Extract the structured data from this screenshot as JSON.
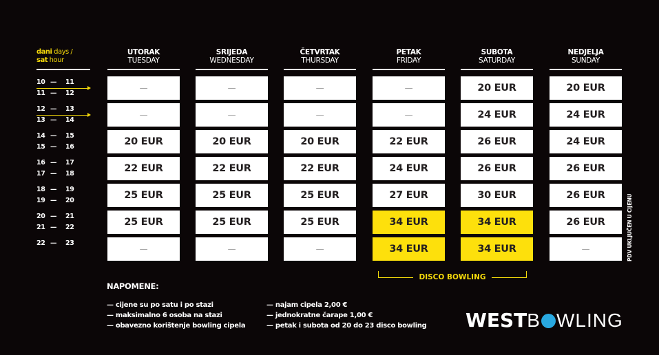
{
  "legend": {
    "days_local": "dani",
    "days_en": "days /",
    "hour_local": "sat",
    "hour_en": "hour"
  },
  "days": [
    {
      "local": "UTORAK",
      "en": "TUESDAY"
    },
    {
      "local": "SRIJEDA",
      "en": "WEDNESDAY"
    },
    {
      "local": "ČETVRTAK",
      "en": "THURSDAY"
    },
    {
      "local": "PETAK",
      "en": "FRIDAY"
    },
    {
      "local": "SUBOTA",
      "en": "SATURDAY"
    },
    {
      "local": "NEDJELJA",
      "en": "SUNDAY"
    }
  ],
  "hours": [
    [
      "10",
      "11"
    ],
    [
      "11",
      "12"
    ],
    [
      "12",
      "13"
    ],
    [
      "13",
      "14"
    ],
    [
      "14",
      "15"
    ],
    [
      "15",
      "16"
    ],
    [
      "16",
      "17"
    ],
    [
      "17",
      "18"
    ],
    [
      "18",
      "19"
    ],
    [
      "19",
      "20"
    ],
    [
      "20",
      "21"
    ],
    [
      "21",
      "22"
    ],
    [
      "22",
      "23"
    ]
  ],
  "dash": "—",
  "prices": [
    [
      "—",
      "—",
      "—",
      "—",
      "20 EUR",
      "20 EUR"
    ],
    [
      "—",
      "—",
      "—",
      "—",
      "24 EUR",
      "24 EUR"
    ],
    [
      "20 EUR",
      "20 EUR",
      "20 EUR",
      "22 EUR",
      "26 EUR",
      "24 EUR"
    ],
    [
      "22 EUR",
      "22 EUR",
      "22 EUR",
      "24 EUR",
      "26 EUR",
      "26 EUR"
    ],
    [
      "25 EUR",
      "25 EUR",
      "25 EUR",
      "27 EUR",
      "30 EUR",
      "26 EUR"
    ],
    [
      "25 EUR",
      "25 EUR",
      "25 EUR",
      "34 EUR",
      "34 EUR",
      "26 EUR"
    ],
    [
      "—",
      "—",
      "—",
      "34 EUR",
      "34 EUR",
      "—"
    ]
  ],
  "highlighted": [
    [
      5,
      3
    ],
    [
      5,
      4
    ],
    [
      6,
      3
    ],
    [
      6,
      4
    ]
  ],
  "colors": {
    "accent": "#fde00c",
    "background": "#0b0607",
    "logo_ball": "#29a8e0"
  },
  "vat_note": "PDV UKLJUČEN U CIJENU",
  "disco_label": "DISCO BOWLING",
  "notes": {
    "title": "NAPOMENE:",
    "col1": [
      "— cijene su po satu i po stazi",
      "— maksimalno 6 osoba na stazi",
      "— obavezno korištenje bowling cipela"
    ],
    "col2": [
      "— najam cipela 2,00 €",
      "— jednokratne čarape 1,00 €",
      "— petak i subota od 20 do 23 disco bowling"
    ]
  },
  "logo": {
    "part1": "WEST",
    "part2a": "B",
    "part2b": "WLING"
  }
}
